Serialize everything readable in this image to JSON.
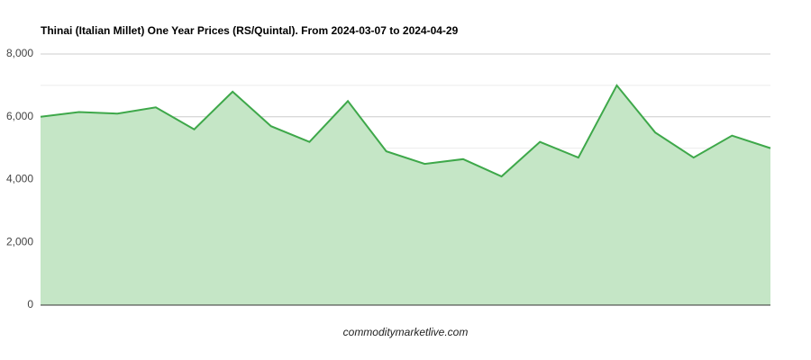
{
  "chart_data": {
    "type": "area",
    "title": "Thinai (Italian Millet) One Year Prices (RS/Quintal). From 2024-03-07 to 2024-04-29",
    "x_label": "commoditymarketlive.com",
    "values": [
      6000,
      6150,
      6100,
      6300,
      5600,
      6800,
      5700,
      5200,
      6500,
      4900,
      4500,
      4650,
      4100,
      5200,
      4700,
      7000,
      5500,
      4700,
      5400,
      5000
    ],
    "color": "#3ea84a",
    "fill": "#c5e6c6",
    "ylim": [
      0,
      8000
    ],
    "yticks": [
      0,
      {
        "value": 2000,
        "label": "2,000"
      },
      {
        "value": 4000,
        "label": "4,000"
      },
      {
        "value": 6000,
        "label": "6,000"
      },
      {
        "value": 8000,
        "label": "8,000"
      }
    ],
    "yminor": [
      1000,
      3000,
      5000,
      7000
    ],
    "grid": true
  }
}
